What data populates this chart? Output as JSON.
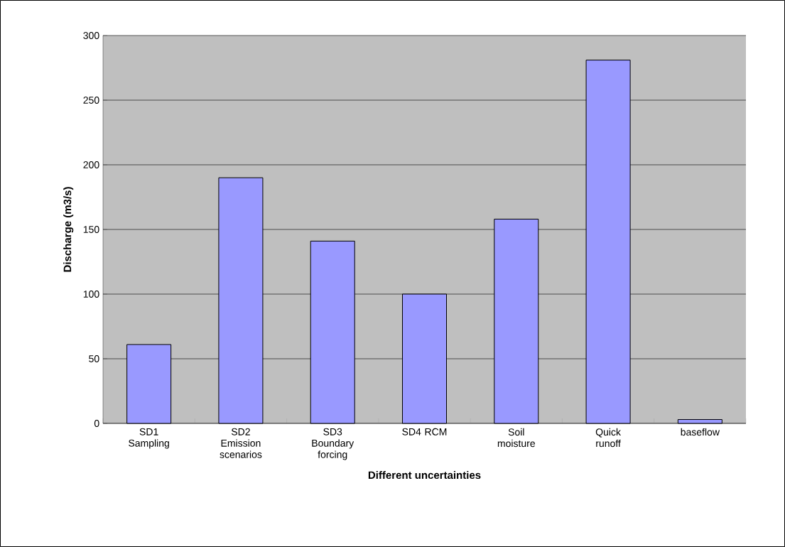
{
  "chart_data": {
    "type": "bar",
    "xlabel": "Different uncertainties",
    "ylabel": "Discharge (m3/s)",
    "categories": [
      "SD1 Sampling",
      "SD2 Emission scenarios",
      "SD3 Boundary forcing",
      "SD4 RCM",
      "Soil moisture",
      "Quick runoff",
      "baseflow"
    ],
    "values": [
      61,
      190,
      141,
      100,
      158,
      281,
      3
    ],
    "color": "#9999ff",
    "ylim": [
      0,
      300
    ],
    "yticks": [
      0,
      50,
      100,
      150,
      200,
      250,
      300
    ],
    "grid": "y"
  }
}
